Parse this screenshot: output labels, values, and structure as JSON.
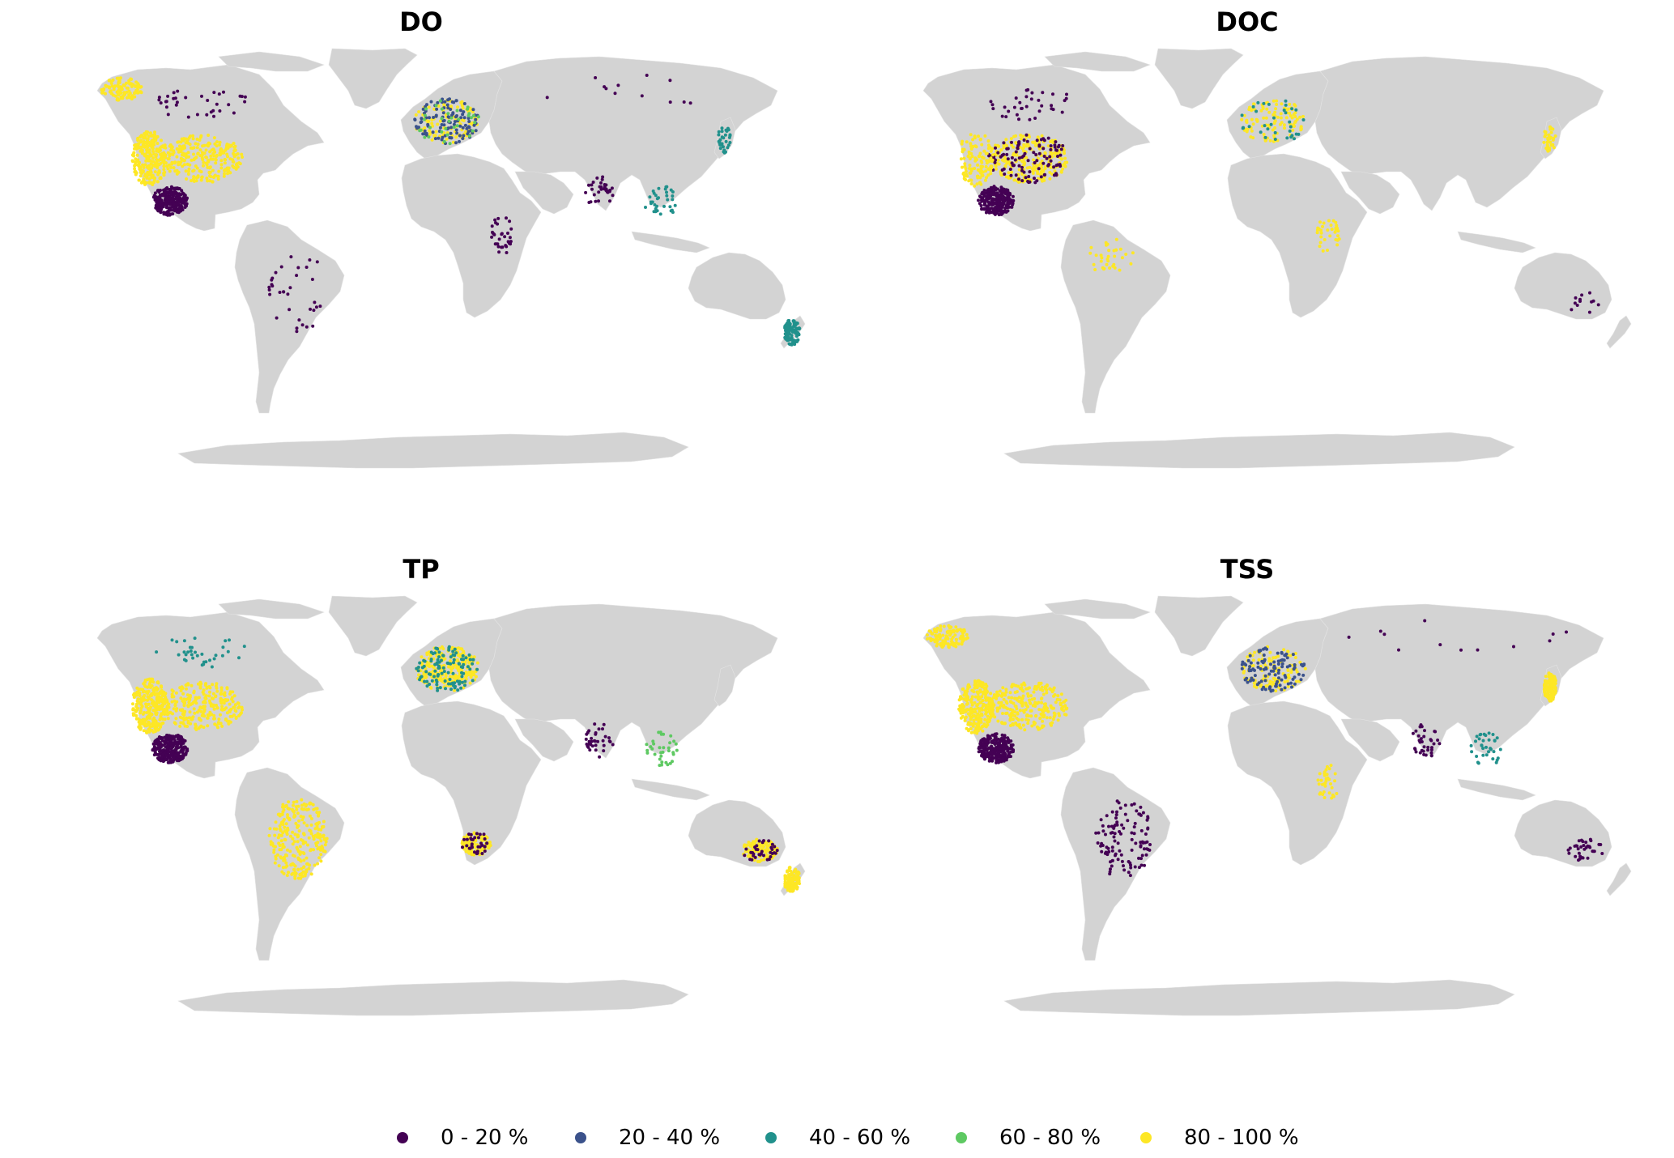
{
  "colors": {
    "land": "#d3d3d3",
    "bin_0_20": "#440154",
    "bin_20_40": "#3b528b",
    "bin_40_60": "#21918c",
    "bin_60_80": "#5ec962",
    "bin_80_100": "#fde725"
  },
  "panels": [
    {
      "id": "do",
      "title": "DO",
      "clusters": [
        {
          "region": "western-north-america",
          "color": "bin_80_100",
          "density": "dense"
        },
        {
          "region": "eastern-united-states",
          "color": "bin_80_100",
          "density": "dense"
        },
        {
          "region": "mexico",
          "color": "bin_0_20",
          "density": "dense"
        },
        {
          "region": "alaska",
          "color": "bin_80_100",
          "density": "medium"
        },
        {
          "region": "canada",
          "color": "bin_0_20",
          "density": "sparse"
        },
        {
          "region": "europe",
          "color": "bin_80_100",
          "density": "medium"
        },
        {
          "region": "europe",
          "color": "bin_20_40",
          "density": "medium"
        },
        {
          "region": "europe",
          "color": "bin_60_80",
          "density": "sparse"
        },
        {
          "region": "brazil",
          "color": "bin_0_20",
          "density": "sparse"
        },
        {
          "region": "india",
          "color": "bin_0_20",
          "density": "sparse"
        },
        {
          "region": "southeast-asia",
          "color": "bin_40_60",
          "density": "sparse"
        },
        {
          "region": "japan",
          "color": "bin_40_60",
          "density": "sparse"
        },
        {
          "region": "new-zealand",
          "color": "bin_40_60",
          "density": "medium"
        },
        {
          "region": "east-africa",
          "color": "bin_0_20",
          "density": "sparse"
        },
        {
          "region": "russia",
          "color": "bin_0_20",
          "density": "very-sparse"
        }
      ]
    },
    {
      "id": "doc",
      "title": "DOC",
      "clusters": [
        {
          "region": "eastern-united-states",
          "color": "bin_80_100",
          "density": "dense"
        },
        {
          "region": "eastern-united-states",
          "color": "bin_0_20",
          "density": "medium"
        },
        {
          "region": "western-north-america",
          "color": "bin_80_100",
          "density": "medium"
        },
        {
          "region": "mexico",
          "color": "bin_0_20",
          "density": "dense"
        },
        {
          "region": "canada",
          "color": "bin_0_20",
          "density": "sparse"
        },
        {
          "region": "europe",
          "color": "bin_80_100",
          "density": "medium"
        },
        {
          "region": "europe",
          "color": "bin_40_60",
          "density": "sparse"
        },
        {
          "region": "amazon",
          "color": "bin_80_100",
          "density": "sparse"
        },
        {
          "region": "east-africa",
          "color": "bin_80_100",
          "density": "sparse"
        },
        {
          "region": "japan",
          "color": "bin_80_100",
          "density": "sparse"
        },
        {
          "region": "southeast-australia",
          "color": "bin_0_20",
          "density": "very-sparse"
        }
      ]
    },
    {
      "id": "tp",
      "title": "TP",
      "clusters": [
        {
          "region": "eastern-united-states",
          "color": "bin_80_100",
          "density": "dense"
        },
        {
          "region": "western-north-america",
          "color": "bin_80_100",
          "density": "dense"
        },
        {
          "region": "mexico",
          "color": "bin_0_20",
          "density": "dense"
        },
        {
          "region": "canada",
          "color": "bin_40_60",
          "density": "sparse"
        },
        {
          "region": "europe",
          "color": "bin_80_100",
          "density": "dense"
        },
        {
          "region": "europe",
          "color": "bin_40_60",
          "density": "medium"
        },
        {
          "region": "brazil",
          "color": "bin_80_100",
          "density": "dense"
        },
        {
          "region": "south-africa",
          "color": "bin_80_100",
          "density": "medium"
        },
        {
          "region": "south-africa",
          "color": "bin_0_20",
          "density": "sparse"
        },
        {
          "region": "southeast-australia",
          "color": "bin_80_100",
          "density": "medium"
        },
        {
          "region": "southeast-australia",
          "color": "bin_0_20",
          "density": "sparse"
        },
        {
          "region": "new-zealand",
          "color": "bin_80_100",
          "density": "medium"
        },
        {
          "region": "india",
          "color": "bin_0_20",
          "density": "sparse"
        },
        {
          "region": "southeast-asia",
          "color": "bin_60_80",
          "density": "sparse"
        }
      ]
    },
    {
      "id": "tss",
      "title": "TSS",
      "clusters": [
        {
          "region": "eastern-united-states",
          "color": "bin_80_100",
          "density": "dense"
        },
        {
          "region": "western-north-america",
          "color": "bin_80_100",
          "density": "dense"
        },
        {
          "region": "mexico",
          "color": "bin_0_20",
          "density": "dense"
        },
        {
          "region": "alaska",
          "color": "bin_80_100",
          "density": "medium"
        },
        {
          "region": "europe",
          "color": "bin_80_100",
          "density": "medium"
        },
        {
          "region": "europe",
          "color": "bin_20_40",
          "density": "medium"
        },
        {
          "region": "brazil",
          "color": "bin_0_20",
          "density": "medium"
        },
        {
          "region": "japan",
          "color": "bin_80_100",
          "density": "medium"
        },
        {
          "region": "india",
          "color": "bin_0_20",
          "density": "sparse"
        },
        {
          "region": "southeast-asia",
          "color": "bin_40_60",
          "density": "sparse"
        },
        {
          "region": "east-africa",
          "color": "bin_80_100",
          "density": "sparse"
        },
        {
          "region": "southeast-australia",
          "color": "bin_0_20",
          "density": "sparse"
        },
        {
          "region": "russia",
          "color": "bin_0_20",
          "density": "very-sparse"
        }
      ]
    }
  ],
  "legend": [
    {
      "label": "0 - 20 %",
      "color": "bin_0_20"
    },
    {
      "label": "20 - 40 %",
      "color": "bin_20_40"
    },
    {
      "label": "40 - 60 %",
      "color": "bin_40_60"
    },
    {
      "label": "60 - 80 %",
      "color": "bin_60_80"
    },
    {
      "label": "80 - 100 %",
      "color": "bin_80_100"
    }
  ]
}
